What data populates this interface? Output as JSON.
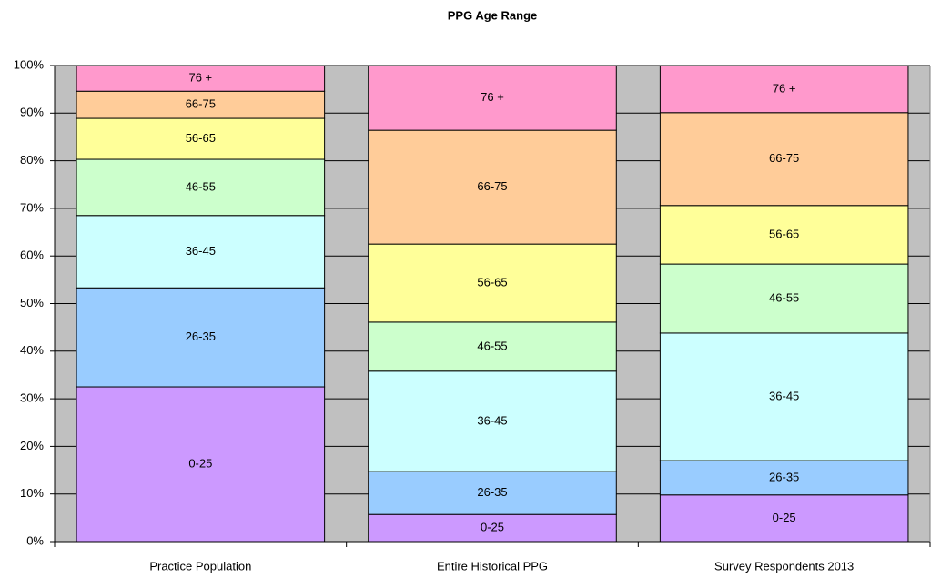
{
  "chart_data": {
    "type": "stacked_bar",
    "title": "PPG Age Range",
    "categories": [
      "Practice Population",
      "Entire Historical PPG",
      "Survey Respondents 2013"
    ],
    "series": [
      {
        "name": "0-25",
        "color": "#cc99ff",
        "values": [
          32.5,
          5.7,
          9.8
        ]
      },
      {
        "name": "26-35",
        "color": "#99ccff",
        "values": [
          20.8,
          9.0,
          7.2
        ]
      },
      {
        "name": "36-45",
        "color": "#ccffff",
        "values": [
          15.2,
          21.1,
          26.8
        ]
      },
      {
        "name": "46-55",
        "color": "#ccffcc",
        "values": [
          11.8,
          10.3,
          14.5
        ]
      },
      {
        "name": "56-65",
        "color": "#ffff99",
        "values": [
          8.6,
          16.4,
          12.3
        ]
      },
      {
        "name": "66-75",
        "color": "#ffcc99",
        "values": [
          5.7,
          23.9,
          19.5
        ]
      },
      {
        "name": "76 +",
        "color": "#ff99cc",
        "values": [
          5.4,
          13.6,
          9.9
        ]
      }
    ],
    "ylim": [
      0,
      100
    ],
    "yticks": [
      {
        "value": 0,
        "label": "0%"
      },
      {
        "value": 10,
        "label": "10%"
      },
      {
        "value": 20,
        "label": "20%"
      },
      {
        "value": 30,
        "label": "30%"
      },
      {
        "value": 40,
        "label": "40%"
      },
      {
        "value": 50,
        "label": "50%"
      },
      {
        "value": 60,
        "label": "60%"
      },
      {
        "value": 70,
        "label": "70%"
      },
      {
        "value": 80,
        "label": "80%"
      },
      {
        "value": 90,
        "label": "90%"
      },
      {
        "value": 100,
        "label": "100%"
      }
    ],
    "grid": true,
    "plot_background": "#c0c0c0"
  }
}
